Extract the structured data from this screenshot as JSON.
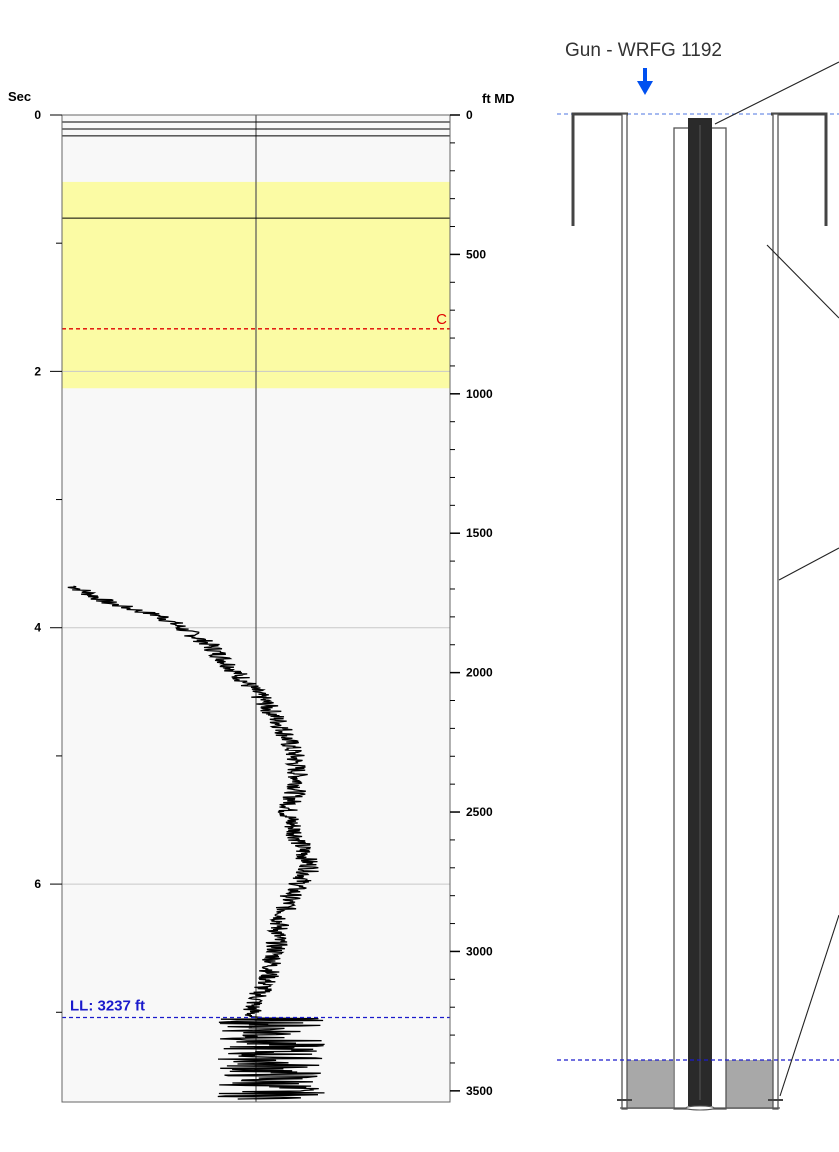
{
  "chart_data": {
    "type": "line",
    "title": "",
    "ylabel_left": "Sec",
    "ylabel_right": "ft MD",
    "ylim_left": [
      0,
      7.7
    ],
    "ylim_right": [
      0,
      3540
    ],
    "y_ticks_left": [
      0,
      2,
      4,
      6
    ],
    "y_ticks_right": [
      0,
      500,
      1000,
      1500,
      2000,
      2500,
      3000,
      3500
    ],
    "grid": true,
    "highlight_band_ft": [
      240,
      980
    ],
    "highlight_color": "#fbfba4",
    "markers": [
      {
        "label": "C",
        "depth_ft": 767,
        "color": "#e00000"
      },
      {
        "label": "LL: 3237 ft",
        "depth_ft": 3237,
        "color": "#1a1acc"
      }
    ],
    "formation_lines_ft": [
      0,
      25,
      50,
      75,
      370
    ],
    "series": [
      {
        "values_ft": [
          1690,
          1750,
          1800,
          1900,
          2000,
          2100,
          2200,
          2300,
          2400,
          2500,
          2600,
          2700,
          2800,
          2900,
          3000,
          3100,
          3200
        ],
        "x_rel": [
          0.03,
          0.12,
          0.26,
          0.38,
          0.45,
          0.52,
          0.57,
          0.6,
          0.61,
          0.58,
          0.61,
          0.64,
          0.59,
          0.56,
          0.55,
          0.53,
          0.49
        ]
      }
    ]
  },
  "wellbore": {
    "gun_label": "Gun - WRFG 1192",
    "arrow_color": "#0050f0",
    "tubing_color": "#2a2a2a",
    "fluid_color": "#a8a8a8"
  }
}
